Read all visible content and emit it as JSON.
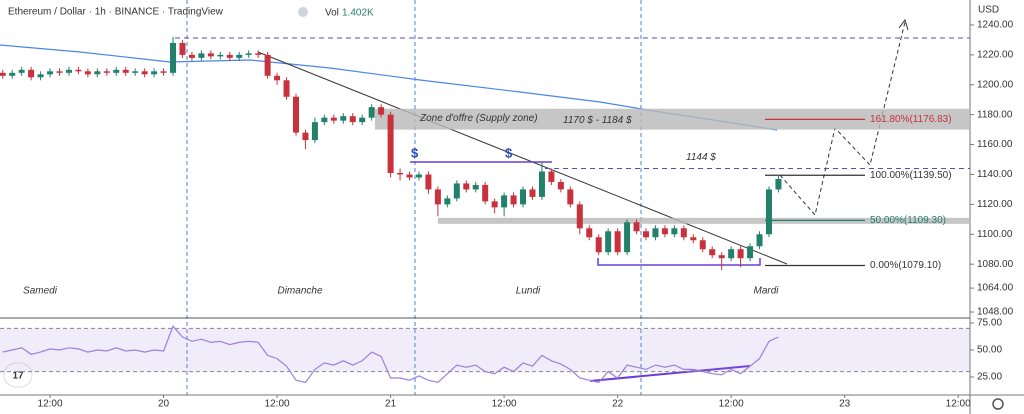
{
  "chart_data": {
    "type": "candlestick",
    "title": "Ethereum / Dollar · 1h · BINANCE · TradingView",
    "volume_label": "Vol",
    "volume": "1.402K",
    "currency": "USD",
    "up_color": "#22806b",
    "down_color": "#c7323d",
    "x": [
      7,
      8,
      9,
      10,
      11,
      12,
      13,
      14,
      15,
      16,
      17,
      18,
      19,
      20,
      21,
      22,
      23,
      24,
      25,
      26,
      27,
      28,
      29,
      30,
      31,
      32,
      33,
      34,
      35,
      36,
      37,
      38,
      39,
      40,
      41,
      42,
      43,
      44,
      45,
      46,
      47,
      48,
      49,
      50,
      51,
      52,
      53,
      54,
      55,
      56,
      57,
      58,
      59,
      60,
      61,
      62,
      63,
      64,
      65,
      66,
      67,
      68,
      69,
      70,
      71,
      72,
      73,
      74,
      75,
      76,
      77,
      78,
      79,
      80,
      81,
      82,
      83,
      84,
      85,
      86,
      87,
      88,
      89
    ],
    "open": [
      1208,
      1206,
      1208,
      1210,
      1205,
      1207,
      1209,
      1208,
      1210,
      1209,
      1207,
      1209,
      1208,
      1210,
      1208,
      1209,
      1207,
      1209,
      1208,
      1228,
      1220,
      1218,
      1221,
      1219,
      1220,
      1218,
      1220,
      1221,
      1220,
      1206,
      1203,
      1192,
      1168,
      1163,
      1175,
      1178,
      1176,
      1179,
      1175,
      1178,
      1185,
      1180,
      1141,
      1140,
      1138,
      1140,
      1130,
      1120,
      1124,
      1134,
      1130,
      1133,
      1122,
      1118,
      1126,
      1120,
      1130,
      1125,
      1142,
      1135,
      1130,
      1120,
      1104,
      1098,
      1088,
      1102,
      1088,
      1108,
      1102,
      1098,
      1104,
      1100,
      1104,
      1098,
      1096,
      1090,
      1086,
      1084,
      1090,
      1084,
      1092,
      1100,
      1130
    ],
    "high": [
      1210,
      1210,
      1212,
      1212,
      1209,
      1211,
      1211,
      1212,
      1212,
      1211,
      1211,
      1211,
      1212,
      1212,
      1211,
      1211,
      1211,
      1211,
      1232,
      1230,
      1222,
      1223,
      1223,
      1222,
      1222,
      1222,
      1223,
      1223,
      1222,
      1208,
      1205,
      1194,
      1170,
      1178,
      1180,
      1180,
      1181,
      1181,
      1180,
      1187,
      1187,
      1182,
      1144,
      1142,
      1142,
      1142,
      1132,
      1126,
      1136,
      1136,
      1135,
      1135,
      1124,
      1128,
      1128,
      1132,
      1132,
      1148,
      1144,
      1137,
      1132,
      1122,
      1106,
      1100,
      1104,
      1104,
      1110,
      1110,
      1104,
      1106,
      1106,
      1106,
      1106,
      1100,
      1098,
      1092,
      1088,
      1092,
      1092,
      1094,
      1102,
      1132,
      1140
    ],
    "low": [
      1204,
      1204,
      1206,
      1203,
      1203,
      1205,
      1206,
      1206,
      1207,
      1205,
      1205,
      1206,
      1206,
      1206,
      1206,
      1205,
      1205,
      1206,
      1206,
      1218,
      1216,
      1216,
      1217,
      1217,
      1216,
      1216,
      1218,
      1218,
      1204,
      1200,
      1190,
      1166,
      1157,
      1161,
      1173,
      1174,
      1174,
      1173,
      1173,
      1176,
      1178,
      1138,
      1136,
      1136,
      1136,
      1127,
      1112,
      1118,
      1122,
      1128,
      1128,
      1120,
      1114,
      1112,
      1118,
      1118,
      1123,
      1123,
      1133,
      1128,
      1118,
      1100,
      1096,
      1086,
      1086,
      1086,
      1086,
      1100,
      1096,
      1096,
      1098,
      1098,
      1096,
      1094,
      1088,
      1084,
      1076,
      1082,
      1078,
      1082,
      1090,
      1098,
      1128
    ],
    "close": [
      1206,
      1208,
      1210,
      1205,
      1207,
      1209,
      1208,
      1210,
      1209,
      1207,
      1209,
      1208,
      1210,
      1208,
      1209,
      1207,
      1209,
      1208,
      1228,
      1220,
      1218,
      1221,
      1219,
      1220,
      1218,
      1220,
      1221,
      1220,
      1206,
      1203,
      1192,
      1168,
      1163,
      1175,
      1178,
      1176,
      1179,
      1175,
      1178,
      1185,
      1180,
      1141,
      1140,
      1138,
      1140,
      1130,
      1120,
      1124,
      1134,
      1130,
      1133,
      1122,
      1118,
      1126,
      1120,
      1130,
      1125,
      1142,
      1135,
      1130,
      1120,
      1104,
      1098,
      1088,
      1102,
      1088,
      1108,
      1102,
      1098,
      1104,
      1100,
      1104,
      1098,
      1096,
      1090,
      1086,
      1084,
      1090,
      1084,
      1092,
      1100,
      1130,
      1137
    ],
    "xlim": [
      6.71,
      109.25
    ],
    "xticks": [
      {
        "value": 12,
        "label": "12:00"
      },
      {
        "value": 24,
        "label": "20"
      },
      {
        "value": 36,
        "label": "12:00"
      },
      {
        "value": 48,
        "label": "21"
      },
      {
        "value": 60,
        "label": "12:00"
      },
      {
        "value": 72,
        "label": "22"
      },
      {
        "value": 84,
        "label": "12:00"
      },
      {
        "value": 96,
        "label": "23"
      },
      {
        "value": 108,
        "label": "12:00"
      }
    ],
    "ylim": [
      1044,
      1256.7
    ],
    "yticks": [
      {
        "value": 1240,
        "label": "1240.00"
      },
      {
        "value": 1220,
        "label": "1220.00"
      },
      {
        "value": 1200,
        "label": "1200.00"
      },
      {
        "value": 1180,
        "label": "1180.00"
      },
      {
        "value": 1160,
        "label": "1160.00"
      },
      {
        "value": 1140,
        "label": "1140.00"
      },
      {
        "value": 1120,
        "label": "1120.00"
      },
      {
        "value": 1100,
        "label": "1100.00"
      },
      {
        "value": 1080,
        "label": "1080.00"
      },
      {
        "value": 1064,
        "label": "1064.00"
      },
      {
        "value": 1048,
        "label": "1048.00"
      }
    ],
    "day_labels": [
      "Samedi",
      "Dimanche",
      "Lundi",
      "Mardi"
    ],
    "markers": [
      "$",
      "$"
    ],
    "supply_zone": {
      "range": [
        1170,
        1184
      ],
      "label": "Zone d'offre (Supply zone)",
      "price_label": "1170 $ - 1184 $"
    },
    "support_zone": [
      1107,
      1111
    ],
    "level": {
      "value": 1144,
      "label": "1144 $"
    },
    "fib_levels": [
      {
        "value": 1176.83,
        "label": "161.80%(1176.83)",
        "color": "#c7323d"
      },
      {
        "value": 1139.5,
        "label": "100.00%(1139.50)",
        "color": "#333333"
      },
      {
        "value": 1109.3,
        "label": "50.00%(1109.30)",
        "color": "#22806b"
      },
      {
        "value": 1079.1,
        "label": "0.00%(1079.10)",
        "color": "#333333"
      }
    ],
    "rsi": {
      "color": "#9c7fe0",
      "values": [
        48,
        50,
        52,
        46,
        48,
        51,
        50,
        52,
        51,
        48,
        50,
        49,
        52,
        49,
        50,
        48,
        50,
        49,
        72,
        62,
        58,
        60,
        57,
        58,
        55,
        57,
        58,
        57,
        45,
        42,
        35,
        22,
        20,
        32,
        38,
        36,
        40,
        36,
        40,
        48,
        44,
        24,
        24,
        22,
        26,
        22,
        20,
        28,
        36,
        34,
        36,
        30,
        28,
        34,
        30,
        38,
        35,
        45,
        40,
        37,
        32,
        24,
        22,
        20,
        30,
        24,
        36,
        34,
        32,
        36,
        34,
        36,
        32,
        32,
        30,
        28,
        27,
        32,
        28,
        35,
        42,
        58,
        62
      ],
      "ylim": [
        8.3,
        79.6
      ],
      "yticks": [
        {
          "value": 75,
          "label": "75.00"
        },
        {
          "value": 50,
          "label": "50.00"
        },
        {
          "value": 25,
          "label": "25.00"
        }
      ],
      "bands": [
        30,
        70
      ]
    }
  }
}
